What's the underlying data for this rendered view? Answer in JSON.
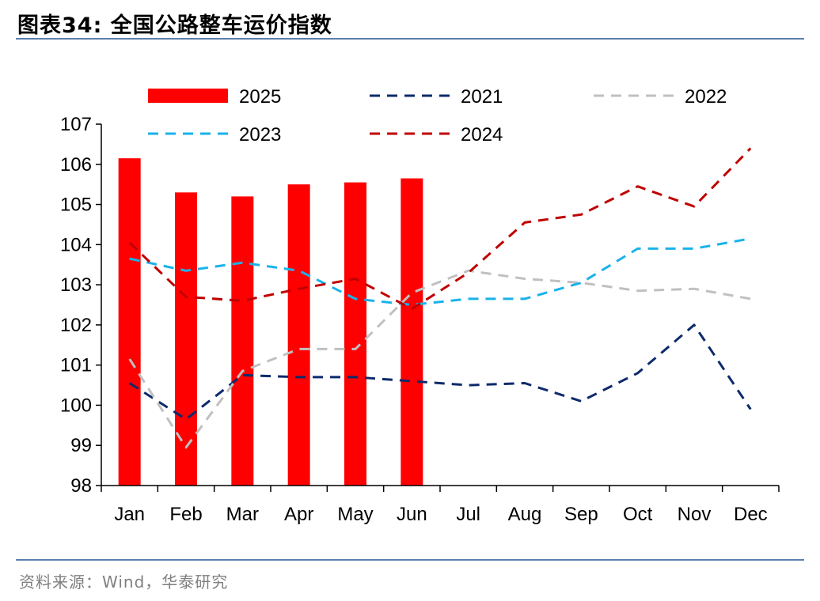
{
  "header": {
    "title": "图表34:   全国公路整车运价指数"
  },
  "footer": {
    "source": "资料来源：Wind，华泰研究"
  },
  "colors": {
    "s2025": "#ff0000",
    "s2021": "#0d2a6b",
    "s2022": "#c0c0c0",
    "s2023": "#1ab2ea",
    "s2024": "#c00000",
    "axis": "#000000",
    "rule": "#5b7fae"
  },
  "chart_data": {
    "type": "bar",
    "categories": [
      "Jan",
      "Feb",
      "Mar",
      "Apr",
      "May",
      "Jun",
      "Jul",
      "Aug",
      "Sep",
      "Oct",
      "Nov",
      "Dec"
    ],
    "ylim": [
      98,
      107
    ],
    "yticks": [
      98,
      99,
      100,
      101,
      102,
      103,
      104,
      105,
      106,
      107
    ],
    "grid": false,
    "legend_position": "top",
    "series": [
      {
        "name": "2025",
        "type": "bar",
        "values": [
          106.15,
          105.3,
          105.2,
          105.5,
          105.55,
          105.65,
          null,
          null,
          null,
          null,
          null,
          null
        ]
      },
      {
        "name": "2021",
        "type": "line-dashed",
        "values": [
          100.55,
          99.65,
          100.75,
          100.7,
          100.7,
          100.6,
          100.5,
          100.55,
          100.1,
          100.8,
          102.0,
          99.9
        ]
      },
      {
        "name": "2022",
        "type": "line-dashed",
        "values": [
          101.15,
          98.95,
          100.85,
          101.4,
          101.4,
          102.8,
          103.35,
          103.15,
          103.05,
          102.85,
          102.9,
          102.65
        ]
      },
      {
        "name": "2023",
        "type": "line-dashed",
        "values": [
          103.65,
          103.35,
          103.55,
          103.35,
          102.65,
          102.5,
          102.65,
          102.65,
          103.05,
          103.9,
          103.9,
          104.15
        ]
      },
      {
        "name": "2024",
        "type": "line-dashed",
        "values": [
          104.05,
          102.7,
          102.6,
          102.9,
          103.15,
          102.4,
          103.3,
          104.55,
          104.75,
          105.45,
          104.95,
          106.4
        ]
      }
    ]
  }
}
